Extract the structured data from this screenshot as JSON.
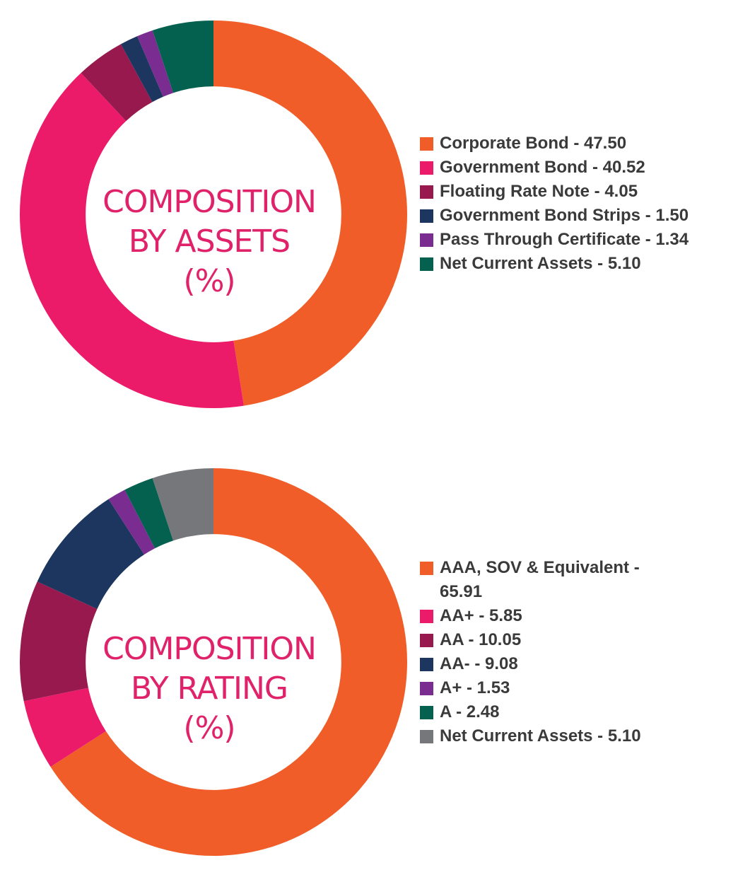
{
  "chart_data": [
    {
      "type": "pie",
      "title": [
        "COMPOSITION",
        "BY ASSETS",
        "(%)"
      ],
      "categories": [
        "Corporate Bond",
        "Government Bond",
        "Floating Rate Note",
        "Government Bond Strips",
        "Pass Through Certificate",
        "Net Current Assets"
      ],
      "values": [
        47.5,
        40.52,
        4.05,
        1.5,
        1.34,
        5.1
      ],
      "colors": [
        "#f15d28",
        "#ec1b6a",
        "#98194d",
        "#1c3660",
        "#7a2c91",
        "#05614f"
      ],
      "legend": [
        {
          "label": "Corporate Bond - 47.50"
        },
        {
          "label": "Government Bond - 40.52"
        },
        {
          "label": "Floating Rate Note - 4.05"
        },
        {
          "label": "Government Bond Strips - 1.50"
        },
        {
          "label": "Pass Through Certificate - 1.34"
        },
        {
          "label": "Net Current Assets - 5.10"
        }
      ],
      "legend_position": "right"
    },
    {
      "type": "pie",
      "title": [
        "COMPOSITION",
        "BY RATING",
        "(%)"
      ],
      "categories": [
        "AAA, SOV & Equivalent",
        "AA+",
        "AA",
        "AA-",
        "A+",
        "A",
        "Net Current Assets"
      ],
      "values": [
        65.91,
        5.85,
        10.05,
        9.08,
        1.53,
        2.48,
        5.1
      ],
      "colors": [
        "#f15d28",
        "#ec1b6a",
        "#98194d",
        "#1c3660",
        "#7a2c91",
        "#05614f",
        "#76777a"
      ],
      "legend": [
        {
          "label": "AAA, SOV & Equivalent - 65.91"
        },
        {
          "label": "AA+ - 5.85"
        },
        {
          "label": "AA - 10.05"
        },
        {
          "label": "AA- - 9.08"
        },
        {
          "label": "A+ - 1.53"
        },
        {
          "label": "A - 2.48"
        },
        {
          "label": "Net Current Assets - 5.10"
        }
      ],
      "legend_position": "right"
    }
  ]
}
